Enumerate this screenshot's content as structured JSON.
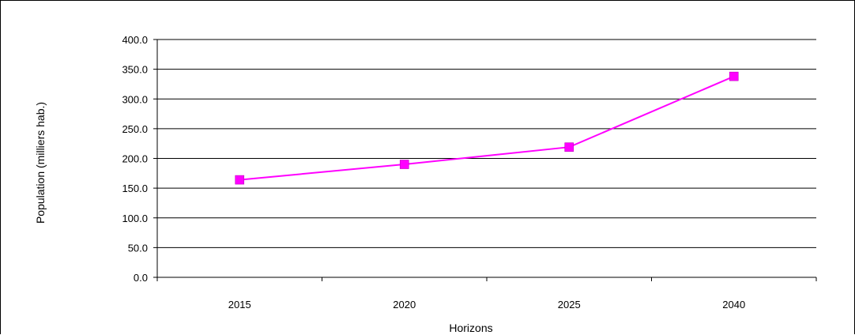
{
  "chart_data": {
    "type": "line",
    "title": "",
    "xlabel": "Horizons",
    "ylabel": "Population (milliers hab.)",
    "categories": [
      "2015",
      "2020",
      "2025",
      "2040"
    ],
    "series": [
      {
        "values": [
          164.0,
          190.0,
          219.0,
          338.0
        ],
        "color": "#FF00FF",
        "marker": "square"
      }
    ],
    "ylim": [
      0,
      400
    ],
    "yticks": [
      "0.0",
      "50.0",
      "100.0",
      "150.0",
      "200.0",
      "250.0",
      "300.0",
      "350.0",
      "400.0"
    ],
    "grid": "horizontal",
    "legend": "none"
  }
}
